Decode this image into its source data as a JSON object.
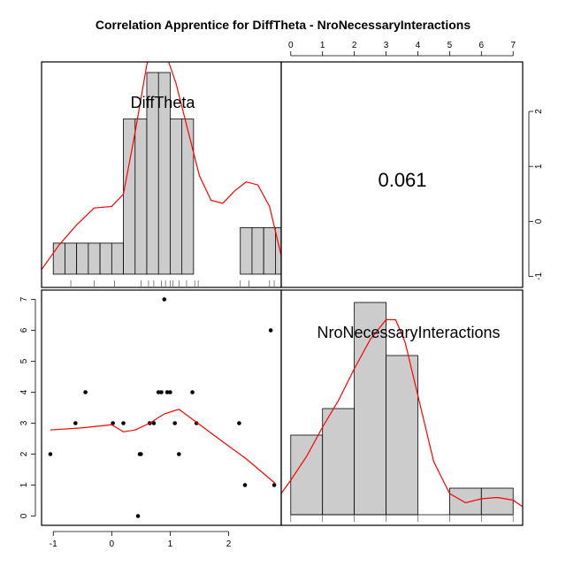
{
  "title": "Correlation Apprentice for DiffTheta - NroNecessaryInteractions",
  "chart_data": {
    "type": "scatter-matrix",
    "title": "Correlation Apprentice for DiffTheta - NroNecessaryInteractions",
    "variables": [
      "DiffTheta",
      "NroNecessaryInteractions"
    ],
    "correlation_label": "0.061",
    "axes": {
      "DiffTheta": {
        "range": [
          -1.2,
          2.9
        ],
        "ticks": [
          -1,
          0,
          1,
          2
        ]
      },
      "NroNecessaryInteractions": {
        "range": [
          -0.3,
          7.3
        ],
        "ticks": [
          0,
          1,
          2,
          3,
          4,
          5,
          6,
          7
        ]
      }
    },
    "hist_difftheta": {
      "bins": [
        [
          -1.0,
          -0.6
        ],
        [
          -0.6,
          -0.2
        ],
        [
          -0.2,
          0.2
        ],
        [
          0.2,
          0.6
        ],
        [
          0.6,
          1.0
        ],
        [
          1.0,
          1.4
        ],
        [
          1.4,
          1.8
        ],
        [
          1.8,
          2.2
        ],
        [
          2.2,
          2.6
        ],
        [
          2.6,
          3.0
        ]
      ],
      "counts": [
        1,
        1,
        1,
        5,
        6.5,
        5,
        0,
        0,
        1.5,
        1.5
      ],
      "rug": [
        -0.7,
        -0.3,
        0.05,
        0.5,
        0.63,
        0.72,
        0.85,
        0.92,
        1.0,
        1.05,
        1.15,
        1.28,
        1.42,
        1.48,
        2.2,
        2.35,
        2.7,
        2.78
      ]
    },
    "hist_nro": {
      "bins": [
        [
          0,
          1
        ],
        [
          1,
          2
        ],
        [
          2,
          3
        ],
        [
          3,
          4
        ],
        [
          4,
          5
        ],
        [
          5,
          6
        ],
        [
          6,
          7
        ]
      ],
      "counts": [
        3,
        4,
        8,
        6,
        0,
        1,
        1
      ]
    },
    "scatter_points": [
      {
        "x": -1.05,
        "y": 2
      },
      {
        "x": -0.62,
        "y": 3
      },
      {
        "x": -0.45,
        "y": 4
      },
      {
        "x": 0.02,
        "y": 3
      },
      {
        "x": 0.2,
        "y": 3
      },
      {
        "x": 0.45,
        "y": 0
      },
      {
        "x": 0.48,
        "y": 2
      },
      {
        "x": 0.5,
        "y": 2
      },
      {
        "x": 0.65,
        "y": 3
      },
      {
        "x": 0.72,
        "y": 3
      },
      {
        "x": 0.8,
        "y": 4
      },
      {
        "x": 0.85,
        "y": 4
      },
      {
        "x": 0.9,
        "y": 7
      },
      {
        "x": 0.95,
        "y": 4
      },
      {
        "x": 1.0,
        "y": 4
      },
      {
        "x": 1.08,
        "y": 3
      },
      {
        "x": 1.15,
        "y": 2
      },
      {
        "x": 1.38,
        "y": 4
      },
      {
        "x": 1.45,
        "y": 3
      },
      {
        "x": 2.18,
        "y": 3
      },
      {
        "x": 2.28,
        "y": 1
      },
      {
        "x": 2.72,
        "y": 6
      },
      {
        "x": 2.78,
        "y": 1
      }
    ],
    "scatter_smooth": [
      [
        -1.05,
        2.78
      ],
      [
        -0.5,
        2.85
      ],
      [
        0.0,
        2.95
      ],
      [
        0.2,
        2.72
      ],
      [
        0.4,
        2.78
      ],
      [
        0.65,
        3.0
      ],
      [
        0.9,
        3.3
      ],
      [
        1.15,
        3.45
      ],
      [
        1.4,
        3.1
      ],
      [
        1.9,
        2.4
      ],
      [
        2.3,
        1.85
      ],
      [
        2.8,
        1.05
      ]
    ],
    "density_difftheta": [
      [
        -1.2,
        0.15
      ],
      [
        -0.9,
        0.95
      ],
      [
        -0.6,
        1.6
      ],
      [
        -0.3,
        2.15
      ],
      [
        0.0,
        2.2
      ],
      [
        0.2,
        2.6
      ],
      [
        0.4,
        4.6
      ],
      [
        0.6,
        6.8
      ],
      [
        0.75,
        7.6
      ],
      [
        0.9,
        7.3
      ],
      [
        1.1,
        6.2
      ],
      [
        1.3,
        4.7
      ],
      [
        1.5,
        3.2
      ],
      [
        1.7,
        2.4
      ],
      [
        1.9,
        2.3
      ],
      [
        2.1,
        2.7
      ],
      [
        2.3,
        3.0
      ],
      [
        2.5,
        2.9
      ],
      [
        2.7,
        2.2
      ],
      [
        2.9,
        0.6
      ]
    ],
    "density_nro": [
      [
        -0.3,
        0.8
      ],
      [
        0.0,
        1.3
      ],
      [
        0.5,
        2.2
      ],
      [
        1.0,
        3.3
      ],
      [
        1.5,
        4.3
      ],
      [
        2.0,
        5.5
      ],
      [
        2.5,
        6.6
      ],
      [
        3.0,
        7.35
      ],
      [
        3.3,
        7.35
      ],
      [
        3.6,
        6.5
      ],
      [
        4.0,
        4.5
      ],
      [
        4.5,
        2.0
      ],
      [
        5.0,
        0.8
      ],
      [
        5.5,
        0.45
      ],
      [
        6.0,
        0.6
      ],
      [
        6.5,
        0.65
      ],
      [
        7.0,
        0.55
      ],
      [
        7.3,
        0.3
      ]
    ]
  }
}
